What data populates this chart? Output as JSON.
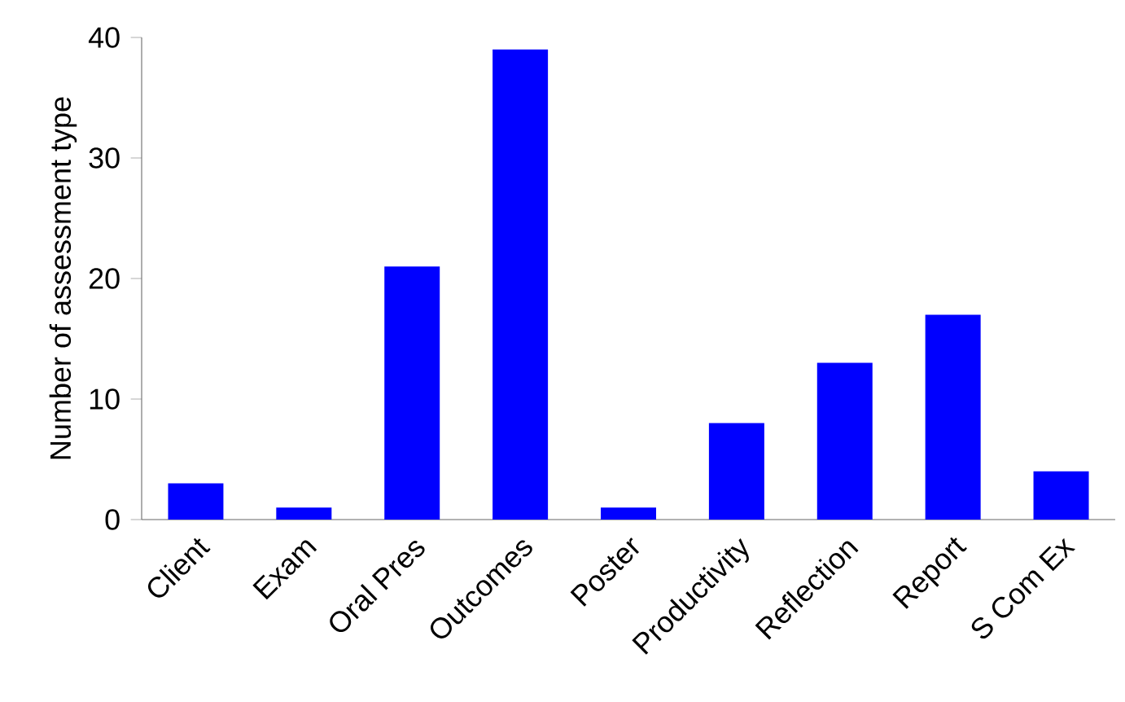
{
  "chart_data": {
    "type": "bar",
    "ylabel": "Number of assessment type",
    "categories": [
      "Client",
      "Exam",
      "Oral Pres",
      "Outcomes",
      "Poster",
      "Productivity",
      "Reflection",
      "Report",
      "S Com Ex"
    ],
    "values": [
      3,
      1,
      21,
      39,
      1,
      8,
      13,
      17,
      4
    ],
    "color": "#0000ff",
    "ylim": [
      0,
      40
    ],
    "yticks": [
      0,
      10,
      20,
      30,
      40
    ]
  }
}
